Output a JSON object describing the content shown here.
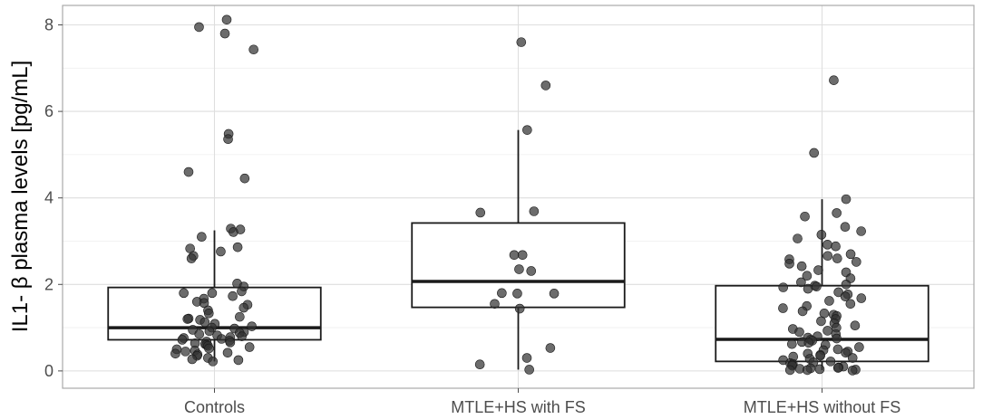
{
  "chart_data": {
    "type": "box",
    "ylabel": "IL1- β  plasma levels  [pg/mL]",
    "xlabel": "",
    "ylim": [
      -0.4,
      8.45
    ],
    "yticks": [
      0,
      2,
      4,
      6,
      8
    ],
    "grid": true,
    "categories": [
      "Controls",
      "MTLE+HS with FS",
      "MTLE+HS without FS"
    ],
    "boxes": [
      {
        "category": "Controls",
        "q1": 0.72,
        "median": 1.0,
        "q3": 1.93,
        "whisker_low": 0.22,
        "whisker_high": 3.25
      },
      {
        "category": "MTLE+HS with FS",
        "q1": 1.47,
        "median": 2.07,
        "q3": 3.42,
        "whisker_low": 0.03,
        "whisker_high": 5.57
      },
      {
        "category": "MTLE+HS without FS",
        "q1": 0.22,
        "median": 0.73,
        "q3": 1.97,
        "whisker_low": 0.02,
        "whisker_high": 3.97
      }
    ],
    "points": [
      {
        "category": "Controls",
        "values": [
          8.12,
          7.95,
          7.8,
          7.43,
          5.48,
          5.36,
          4.6,
          4.45,
          3.29,
          3.27,
          3.21,
          3.1,
          2.86,
          2.83,
          2.76,
          2.66,
          2.6,
          2.02,
          1.95,
          1.84,
          1.8,
          1.8,
          1.73,
          1.67,
          1.6,
          1.57,
          1.53,
          1.46,
          1.4,
          1.33,
          1.25,
          1.21,
          1.2,
          1.18,
          1.13,
          1.09,
          1.03,
          1.0,
          0.98,
          0.95,
          0.92,
          0.9,
          0.88,
          0.85,
          0.82,
          0.8,
          0.78,
          0.76,
          0.74,
          0.72,
          0.7,
          0.68,
          0.66,
          0.64,
          0.62,
          0.6,
          0.58,
          0.55,
          0.52,
          0.5,
          0.47,
          0.45,
          0.42,
          0.4,
          0.38,
          0.35,
          0.3,
          0.27,
          0.25,
          0.22
        ]
      },
      {
        "category": "MTLE+HS with FS",
        "values": [
          7.6,
          6.6,
          5.57,
          3.69,
          3.66,
          2.68,
          2.68,
          2.35,
          2.31,
          1.8,
          1.79,
          1.79,
          1.55,
          1.44,
          0.53,
          0.3,
          0.15,
          0.03
        ]
      },
      {
        "category": "MTLE+HS without FS",
        "values": [
          6.72,
          5.04,
          3.97,
          3.65,
          3.57,
          3.33,
          3.23,
          3.15,
          3.06,
          2.92,
          2.88,
          2.7,
          2.66,
          2.6,
          2.58,
          2.52,
          2.48,
          2.42,
          2.33,
          2.28,
          2.2,
          2.14,
          2.05,
          2.0,
          1.97,
          1.95,
          1.93,
          1.9,
          1.82,
          1.77,
          1.72,
          1.68,
          1.62,
          1.55,
          1.5,
          1.45,
          1.38,
          1.33,
          1.3,
          1.27,
          1.2,
          1.15,
          1.1,
          1.05,
          1.0,
          0.97,
          0.93,
          0.9,
          0.85,
          0.8,
          0.77,
          0.75,
          0.72,
          0.7,
          0.67,
          0.65,
          0.62,
          0.6,
          0.55,
          0.5,
          0.48,
          0.45,
          0.42,
          0.4,
          0.37,
          0.35,
          0.33,
          0.3,
          0.28,
          0.25,
          0.22,
          0.2,
          0.18,
          0.16,
          0.14,
          0.12,
          0.1,
          0.08,
          0.07,
          0.06,
          0.05,
          0.04,
          0.03,
          0.02,
          0.02,
          0.01
        ]
      }
    ]
  }
}
